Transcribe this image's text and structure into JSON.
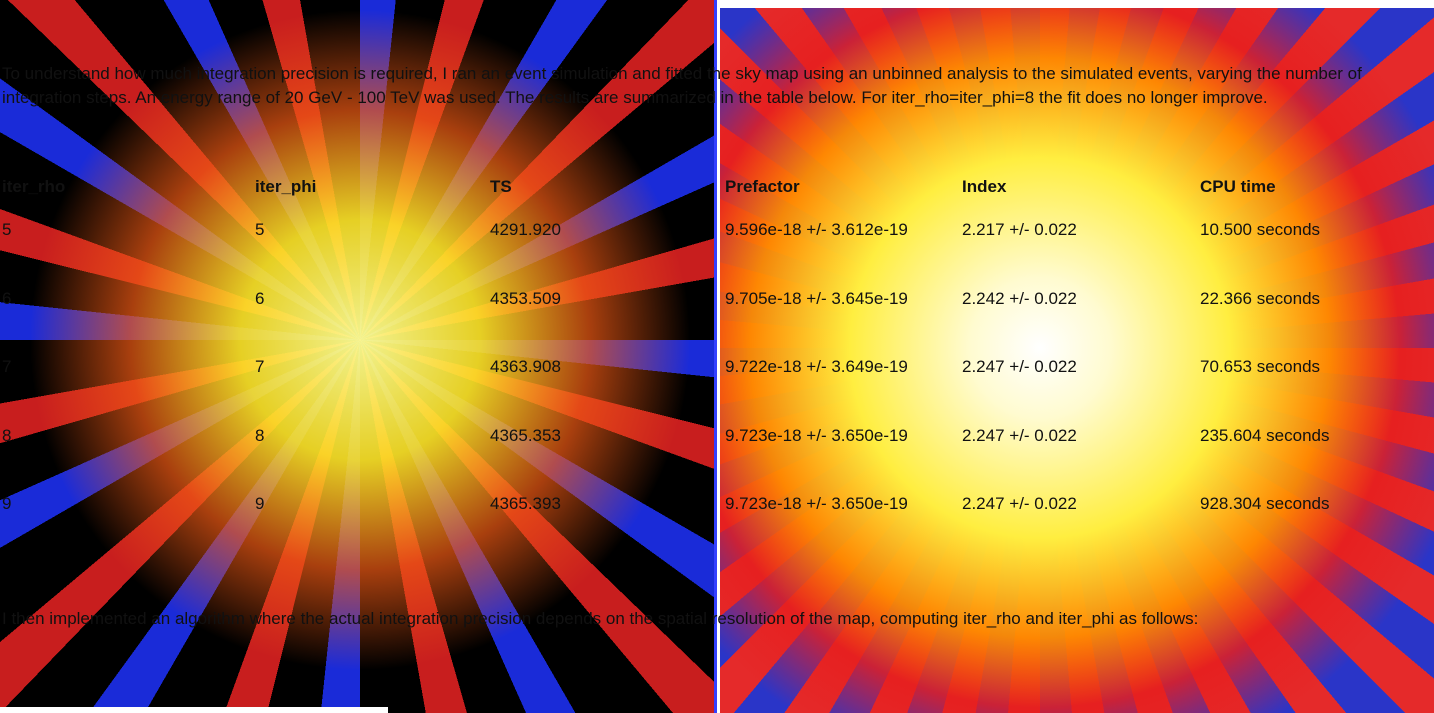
{
  "paragraphs": [
    "To understand how much integration precision is required, I ran an event simulation and fitted the sky map using an unbinned analysis to the simulated events, varying the number of integration steps. An energy range of 20 GeV - 100 TeV was used. The results are summarized in the table below. For iter_rho=iter_phi=8 the fit does no longer improve.",
    "I then implemented an algorithm where the actual integration precision depends on the spatial resolution of the map, computing iter_rho and iter_phi as follows:"
  ],
  "table": {
    "header": [
      "iter_rho",
      "iter_phi",
      "TS",
      "Prefactor",
      "Index",
      "CPU time"
    ],
    "rows": [
      [
        "5",
        "5",
        "4291.920",
        "9.596e-18 +/- 3.612e-19",
        "2.217 +/- 0.022",
        "10.500 seconds"
      ],
      [
        "6",
        "6",
        "4353.509",
        "9.705e-18 +/- 3.645e-19",
        "2.242 +/- 0.022",
        "22.366 seconds"
      ],
      [
        "7",
        "7",
        "4363.908",
        "9.722e-18 +/- 3.649e-19",
        "2.247 +/- 0.022",
        "70.653 seconds"
      ],
      [
        "8",
        "8",
        "4365.353",
        "9.723e-18 +/- 3.650e-19",
        "2.247 +/- 0.022",
        "235.604 seconds"
      ],
      [
        "9",
        "9",
        "4365.393",
        "9.723e-18 +/- 3.650e-19",
        "2.247 +/- 0.022",
        "928.304 seconds"
      ]
    ]
  }
}
